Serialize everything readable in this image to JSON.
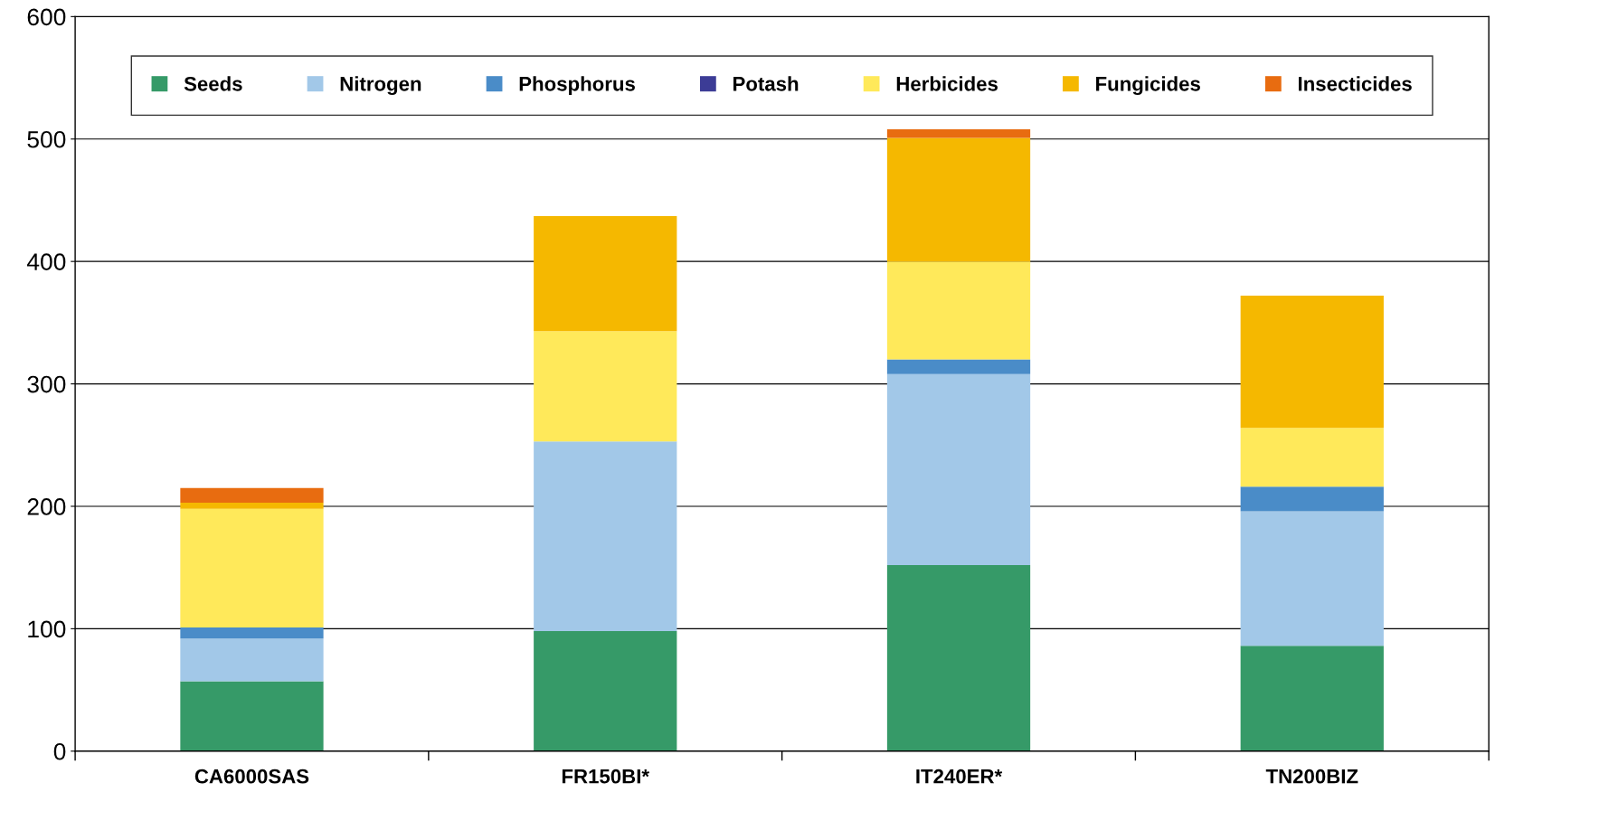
{
  "chart_data": {
    "type": "bar",
    "stacked": true,
    "categories": [
      "CA6000SAS",
      "FR150BI*",
      "IT240ER*",
      "TN200BIZ"
    ],
    "series": [
      {
        "name": "Seeds",
        "color": "#369a68",
        "values": [
          57,
          98,
          152,
          86
        ]
      },
      {
        "name": "Nitrogen",
        "color": "#a2c8e8",
        "values": [
          35,
          155,
          156,
          110
        ]
      },
      {
        "name": "Phosphorus",
        "color": "#4a8cc8",
        "values": [
          9,
          0,
          12,
          20
        ]
      },
      {
        "name": "Potash",
        "color": "#3c3c96",
        "values": [
          0,
          0,
          0,
          0
        ]
      },
      {
        "name": "Herbicides",
        "color": "#ffe95a",
        "values": [
          97,
          90,
          80,
          48
        ]
      },
      {
        "name": "Fungicides",
        "color": "#f5b800",
        "values": [
          5,
          94,
          101,
          108
        ]
      },
      {
        "name": "Insecticides",
        "color": "#e86c10",
        "values": [
          12,
          0,
          7,
          0
        ]
      }
    ],
    "ylim": [
      0,
      600
    ],
    "yticks": [
      0,
      100,
      200,
      300,
      400,
      500,
      600
    ],
    "grid": "y",
    "legend": "top"
  }
}
